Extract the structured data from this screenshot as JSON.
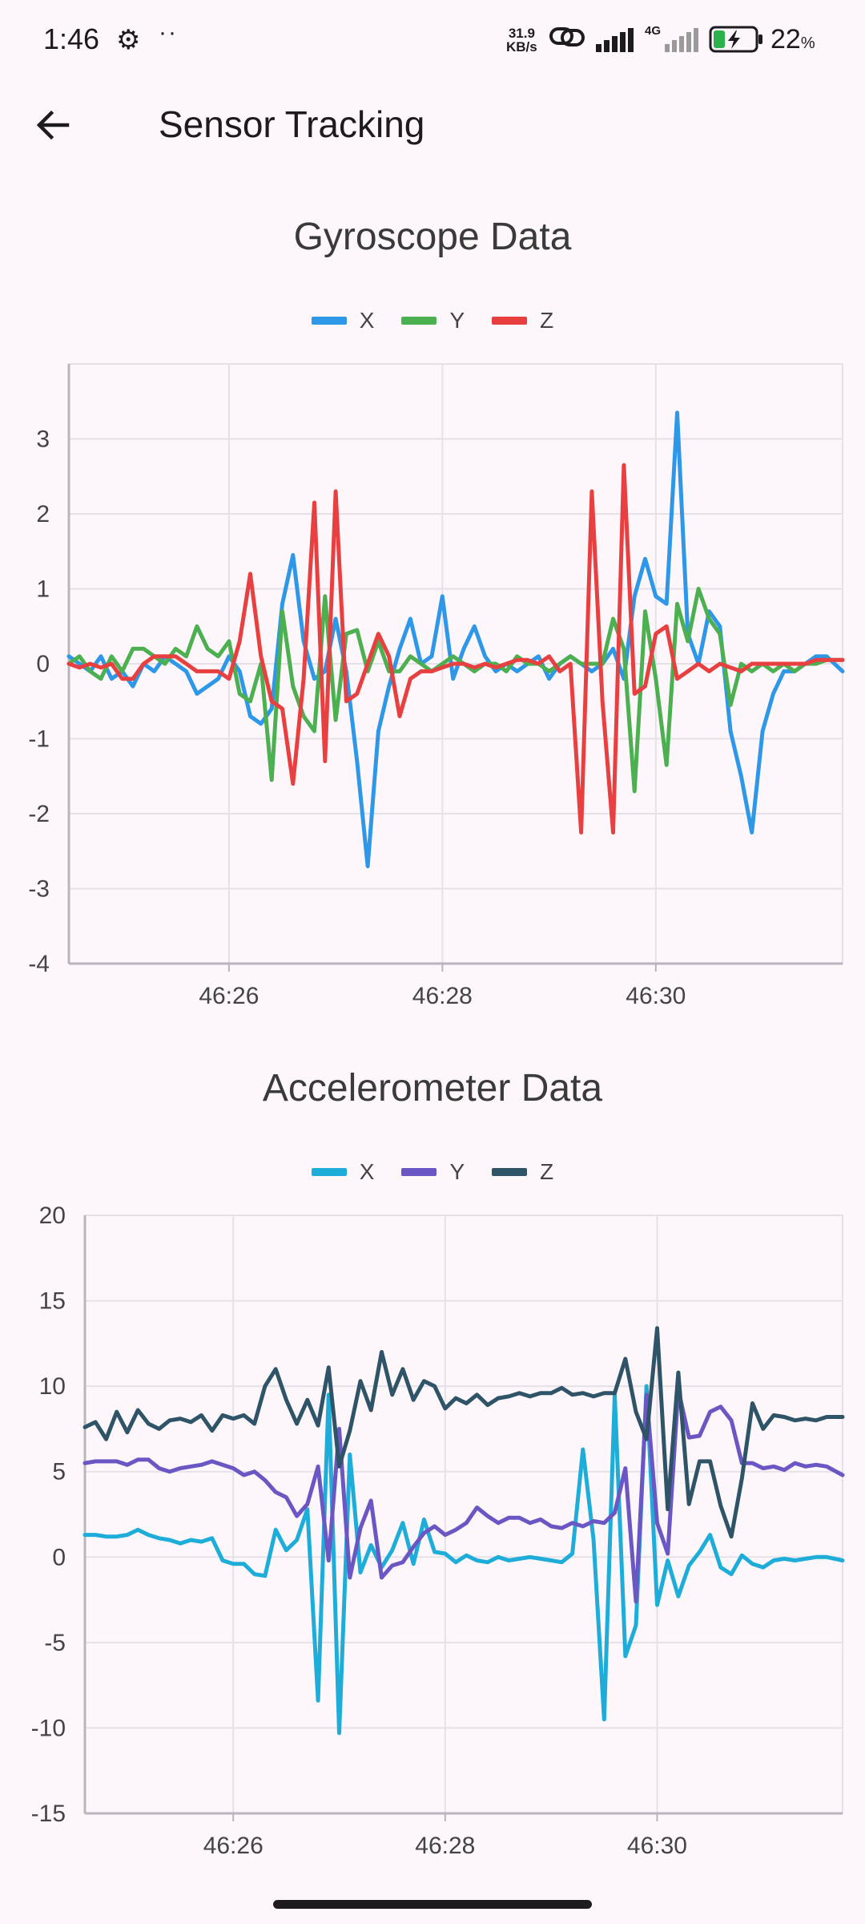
{
  "status_bar": {
    "time": "1:46",
    "net_speed_value": "31.9",
    "net_speed_unit": "KB/s",
    "network_type": "4G",
    "battery_percent": "22",
    "battery_unit": "%",
    "icons": [
      "gear-icon",
      "more-dots-icon",
      "link-icon",
      "signal-icon",
      "signal-icon-2",
      "battery-charging-icon"
    ]
  },
  "app_bar": {
    "title": "Sensor Tracking",
    "back_icon": "arrow-left-icon"
  },
  "colors": {
    "background": "#fdf7fc",
    "gyro_x": "#2f97e8",
    "gyro_y": "#4caf50",
    "gyro_z": "#e84040",
    "accel_x": "#1eadd9",
    "accel_y": "#6b57c3",
    "accel_z": "#2f5468"
  },
  "chart_data": [
    {
      "type": "line",
      "title": "Gyroscope Data",
      "xlabel": "",
      "ylabel": "",
      "xlim": [
        24.5,
        31.75
      ],
      "ylim": [
        -4,
        4
      ],
      "yticks": [
        3,
        2,
        1,
        0,
        -1,
        -2,
        -3,
        -4
      ],
      "ytick_labels": [
        "3",
        "2",
        "1",
        "0",
        "-1",
        "-2",
        "-3",
        "-4"
      ],
      "xticks": [
        26,
        28,
        30
      ],
      "xtick_labels": [
        "46:26",
        "46:28",
        "46:30"
      ],
      "grid": true,
      "legend": "top-center",
      "series": [
        {
          "name": "X",
          "color": "#2f97e8",
          "x": [
            24.5,
            24.6,
            24.7,
            24.8,
            24.9,
            25.0,
            25.1,
            25.2,
            25.3,
            25.4,
            25.5,
            25.6,
            25.7,
            25.8,
            25.9,
            26.0,
            26.1,
            26.2,
            26.3,
            26.4,
            26.5,
            26.6,
            26.7,
            26.8,
            26.9,
            27.0,
            27.1,
            27.2,
            27.3,
            27.4,
            27.5,
            27.6,
            27.7,
            27.8,
            27.9,
            28.0,
            28.1,
            28.2,
            28.3,
            28.4,
            28.5,
            28.6,
            28.7,
            28.8,
            28.9,
            29.0,
            29.1,
            29.2,
            29.3,
            29.4,
            29.5,
            29.6,
            29.7,
            29.8,
            29.9,
            30.0,
            30.1,
            30.2,
            30.3,
            30.4,
            30.5,
            30.6,
            30.7,
            30.8,
            30.9,
            31.0,
            31.1,
            31.2,
            31.3,
            31.4,
            31.5,
            31.6,
            31.75
          ],
          "y": [
            0.1,
            0.0,
            -0.1,
            0.1,
            -0.2,
            -0.1,
            -0.3,
            0.0,
            -0.1,
            0.1,
            0.0,
            -0.1,
            -0.4,
            -0.3,
            -0.2,
            0.1,
            -0.1,
            -0.7,
            -0.8,
            -0.6,
            0.8,
            1.45,
            0.3,
            -0.2,
            -0.1,
            0.6,
            -0.1,
            -1.3,
            -2.7,
            -0.9,
            -0.3,
            0.2,
            0.6,
            0.0,
            0.1,
            0.9,
            -0.2,
            0.2,
            0.5,
            0.1,
            -0.1,
            0.0,
            -0.1,
            0.0,
            0.1,
            -0.2,
            0.0,
            0.1,
            0.0,
            -0.1,
            0.0,
            0.2,
            -0.2,
            0.9,
            1.4,
            0.9,
            0.8,
            3.35,
            0.4,
            0.0,
            0.7,
            0.5,
            -0.9,
            -1.5,
            -2.25,
            -0.9,
            -0.4,
            -0.1,
            -0.1,
            0.0,
            0.1,
            0.1,
            -0.1
          ]
        },
        {
          "name": "Y",
          "color": "#4caf50",
          "x": [
            24.5,
            24.6,
            24.7,
            24.8,
            24.9,
            25.0,
            25.1,
            25.2,
            25.3,
            25.4,
            25.5,
            25.6,
            25.7,
            25.8,
            25.9,
            26.0,
            26.1,
            26.2,
            26.3,
            26.4,
            26.5,
            26.6,
            26.7,
            26.8,
            26.9,
            27.0,
            27.1,
            27.2,
            27.3,
            27.4,
            27.5,
            27.6,
            27.7,
            27.8,
            27.9,
            28.0,
            28.1,
            28.2,
            28.3,
            28.4,
            28.5,
            28.6,
            28.7,
            28.8,
            28.9,
            29.0,
            29.1,
            29.2,
            29.3,
            29.4,
            29.5,
            29.6,
            29.7,
            29.8,
            29.9,
            30.0,
            30.1,
            30.2,
            30.3,
            30.4,
            30.5,
            30.6,
            30.7,
            30.8,
            30.9,
            31.0,
            31.1,
            31.2,
            31.3,
            31.4,
            31.5,
            31.6,
            31.75
          ],
          "y": [
            0.0,
            0.1,
            -0.1,
            -0.2,
            0.1,
            -0.1,
            0.2,
            0.2,
            0.1,
            0.0,
            0.2,
            0.1,
            0.5,
            0.2,
            0.1,
            0.3,
            -0.4,
            -0.5,
            0.0,
            -1.55,
            0.7,
            -0.3,
            -0.7,
            -0.9,
            0.9,
            -0.75,
            0.4,
            0.45,
            -0.1,
            0.3,
            -0.1,
            -0.1,
            0.1,
            0.0,
            -0.1,
            0.0,
            0.1,
            0.0,
            -0.1,
            0.0,
            0.0,
            -0.1,
            0.1,
            0.0,
            0.0,
            -0.1,
            0.0,
            0.1,
            0.0,
            0.0,
            0.0,
            0.6,
            0.2,
            -1.7,
            0.7,
            -0.2,
            -1.35,
            0.8,
            0.3,
            1.0,
            0.6,
            0.4,
            -0.55,
            0.0,
            -0.1,
            0.0,
            -0.1,
            0.0,
            -0.1,
            0.0,
            0.0,
            0.05,
            0.05
          ]
        },
        {
          "name": "Z",
          "color": "#e84040",
          "x": [
            24.5,
            24.6,
            24.7,
            24.8,
            24.9,
            25.0,
            25.1,
            25.2,
            25.3,
            25.4,
            25.5,
            25.6,
            25.7,
            25.8,
            25.9,
            26.0,
            26.1,
            26.2,
            26.3,
            26.4,
            26.5,
            26.6,
            26.7,
            26.8,
            26.9,
            27.0,
            27.1,
            27.2,
            27.3,
            27.4,
            27.5,
            27.6,
            27.7,
            27.8,
            27.9,
            28.0,
            28.1,
            28.2,
            28.3,
            28.4,
            28.5,
            28.6,
            28.7,
            28.8,
            28.9,
            29.0,
            29.1,
            29.2,
            29.3,
            29.4,
            29.5,
            29.6,
            29.7,
            29.8,
            29.9,
            30.0,
            30.1,
            30.2,
            30.3,
            30.4,
            30.5,
            30.6,
            30.7,
            30.8,
            30.9,
            31.0,
            31.1,
            31.2,
            31.3,
            31.4,
            31.5,
            31.6,
            31.75
          ],
          "y": [
            0.0,
            -0.05,
            0.0,
            -0.05,
            0.0,
            -0.2,
            -0.2,
            0.0,
            0.1,
            0.1,
            0.1,
            0.0,
            -0.1,
            -0.1,
            -0.1,
            -0.2,
            0.3,
            1.2,
            0.1,
            -0.5,
            -0.6,
            -1.6,
            -0.2,
            2.15,
            -1.3,
            2.3,
            -0.5,
            -0.4,
            0.0,
            0.4,
            0.1,
            -0.7,
            -0.2,
            -0.1,
            -0.1,
            -0.05,
            0.0,
            0.0,
            -0.05,
            0.0,
            -0.05,
            0.0,
            0.05,
            0.05,
            0.0,
            0.1,
            -0.1,
            0.0,
            -2.25,
            2.3,
            -0.5,
            -2.25,
            2.65,
            -0.4,
            -0.3,
            0.4,
            0.5,
            -0.2,
            -0.1,
            0.0,
            -0.1,
            0.0,
            -0.05,
            -0.1,
            0.0,
            0.0,
            0.0,
            0.0,
            0.0,
            0.0,
            0.05,
            0.05,
            0.05
          ]
        }
      ]
    },
    {
      "type": "line",
      "title": "Accelerometer Data",
      "xlabel": "",
      "ylabel": "",
      "xlim": [
        24.6,
        31.75
      ],
      "ylim": [
        -15,
        20
      ],
      "yticks": [
        20,
        15,
        10,
        5,
        0,
        -5,
        -10,
        -15
      ],
      "ytick_labels": [
        "20",
        "15",
        "10",
        "5",
        "0",
        "-5",
        "-10",
        "-15"
      ],
      "xticks": [
        26,
        28,
        30
      ],
      "xtick_labels": [
        "46:26",
        "46:28",
        "46:30"
      ],
      "grid": true,
      "legend": "top-center",
      "series": [
        {
          "name": "X",
          "color": "#1eadd9",
          "x": [
            24.6,
            24.7,
            24.8,
            24.9,
            25.0,
            25.1,
            25.2,
            25.3,
            25.4,
            25.5,
            25.6,
            25.7,
            25.8,
            25.9,
            26.0,
            26.1,
            26.2,
            26.3,
            26.4,
            26.5,
            26.6,
            26.7,
            26.8,
            26.9,
            27.0,
            27.1,
            27.2,
            27.3,
            27.4,
            27.5,
            27.6,
            27.7,
            27.8,
            27.9,
            28.0,
            28.1,
            28.2,
            28.3,
            28.4,
            28.5,
            28.6,
            28.7,
            28.8,
            28.9,
            29.0,
            29.1,
            29.2,
            29.3,
            29.4,
            29.5,
            29.6,
            29.7,
            29.8,
            29.9,
            30.0,
            30.1,
            30.2,
            30.3,
            30.4,
            30.5,
            30.6,
            30.7,
            30.8,
            30.9,
            31.0,
            31.1,
            31.2,
            31.3,
            31.4,
            31.5,
            31.6,
            31.75
          ],
          "y": [
            1.3,
            1.3,
            1.2,
            1.2,
            1.3,
            1.6,
            1.3,
            1.1,
            1.0,
            0.8,
            1.0,
            0.9,
            1.1,
            -0.2,
            -0.4,
            -0.4,
            -1.0,
            -1.1,
            1.6,
            0.4,
            1.0,
            2.8,
            -8.4,
            9.5,
            -10.3,
            6.0,
            -0.9,
            0.7,
            -0.6,
            0.4,
            2.0,
            -0.4,
            2.2,
            0.3,
            0.2,
            -0.3,
            0.1,
            -0.2,
            -0.3,
            0.0,
            -0.2,
            -0.1,
            0.0,
            -0.1,
            -0.2,
            -0.3,
            0.2,
            6.3,
            1.0,
            -9.5,
            9.5,
            -5.8,
            -4.0,
            10.0,
            -2.8,
            -0.2,
            -2.3,
            -0.5,
            0.3,
            1.3,
            -0.6,
            -1.0,
            0.1,
            -0.4,
            -0.6,
            -0.2,
            -0.1,
            -0.2,
            -0.1,
            0.0,
            0.0,
            -0.2
          ]
        },
        {
          "name": "Y",
          "color": "#6b57c3",
          "x": [
            24.6,
            24.7,
            24.8,
            24.9,
            25.0,
            25.1,
            25.2,
            25.3,
            25.4,
            25.5,
            25.6,
            25.7,
            25.8,
            25.9,
            26.0,
            26.1,
            26.2,
            26.3,
            26.4,
            26.5,
            26.6,
            26.7,
            26.8,
            26.9,
            27.0,
            27.1,
            27.2,
            27.3,
            27.4,
            27.5,
            27.6,
            27.7,
            27.8,
            27.9,
            28.0,
            28.1,
            28.2,
            28.3,
            28.4,
            28.5,
            28.6,
            28.7,
            28.8,
            28.9,
            29.0,
            29.1,
            29.2,
            29.3,
            29.4,
            29.5,
            29.6,
            29.7,
            29.8,
            29.9,
            30.0,
            30.1,
            30.2,
            30.3,
            30.4,
            30.5,
            30.6,
            30.7,
            30.8,
            30.9,
            31.0,
            31.1,
            31.2,
            31.3,
            31.4,
            31.5,
            31.6,
            31.75
          ],
          "y": [
            5.5,
            5.6,
            5.6,
            5.6,
            5.4,
            5.7,
            5.7,
            5.2,
            5.0,
            5.2,
            5.3,
            5.4,
            5.6,
            5.4,
            5.2,
            4.8,
            5.0,
            4.5,
            3.8,
            3.5,
            2.4,
            3.1,
            5.3,
            -0.2,
            7.5,
            -1.2,
            1.7,
            3.3,
            -1.2,
            -0.5,
            -0.3,
            0.6,
            1.4,
            1.8,
            1.3,
            1.6,
            2.0,
            2.9,
            2.4,
            2.0,
            2.3,
            2.3,
            2.0,
            2.2,
            1.8,
            1.7,
            2.0,
            1.8,
            2.1,
            2.0,
            2.6,
            5.2,
            -2.6,
            9.5,
            2.0,
            0.2,
            9.8,
            7.0,
            7.1,
            8.5,
            8.8,
            8.0,
            5.5,
            5.5,
            5.2,
            5.3,
            5.1,
            5.5,
            5.3,
            5.4,
            5.3,
            4.8
          ]
        },
        {
          "name": "Z",
          "color": "#2f5468",
          "x": [
            24.6,
            24.7,
            24.8,
            24.9,
            25.0,
            25.1,
            25.2,
            25.3,
            25.4,
            25.5,
            25.6,
            25.7,
            25.8,
            25.9,
            26.0,
            26.1,
            26.2,
            26.3,
            26.4,
            26.5,
            26.6,
            26.7,
            26.8,
            26.9,
            27.0,
            27.1,
            27.2,
            27.3,
            27.4,
            27.5,
            27.6,
            27.7,
            27.8,
            27.9,
            28.0,
            28.1,
            28.2,
            28.3,
            28.4,
            28.5,
            28.6,
            28.7,
            28.8,
            28.9,
            29.0,
            29.1,
            29.2,
            29.3,
            29.4,
            29.5,
            29.6,
            29.7,
            29.8,
            29.9,
            30.0,
            30.1,
            30.2,
            30.3,
            30.4,
            30.5,
            30.6,
            30.7,
            30.8,
            30.9,
            31.0,
            31.1,
            31.2,
            31.3,
            31.4,
            31.5,
            31.6,
            31.75
          ],
          "y": [
            7.6,
            7.9,
            6.9,
            8.5,
            7.3,
            8.6,
            7.8,
            7.5,
            8.0,
            8.1,
            7.9,
            8.3,
            7.4,
            8.3,
            8.1,
            8.3,
            7.8,
            10.0,
            11.0,
            9.2,
            7.8,
            9.2,
            7.7,
            11.1,
            5.3,
            7.4,
            10.3,
            8.6,
            12.0,
            9.5,
            11.0,
            9.2,
            10.3,
            10.0,
            8.7,
            9.3,
            9.0,
            9.5,
            8.9,
            9.3,
            9.4,
            9.6,
            9.4,
            9.6,
            9.6,
            9.9,
            9.5,
            9.6,
            9.4,
            9.6,
            9.6,
            11.6,
            8.5,
            6.9,
            13.4,
            2.8,
            10.8,
            3.1,
            5.6,
            5.6,
            3.0,
            1.2,
            4.6,
            9.0,
            7.5,
            8.3,
            8.2,
            8.0,
            8.1,
            8.0,
            8.2,
            8.2
          ]
        }
      ]
    }
  ]
}
